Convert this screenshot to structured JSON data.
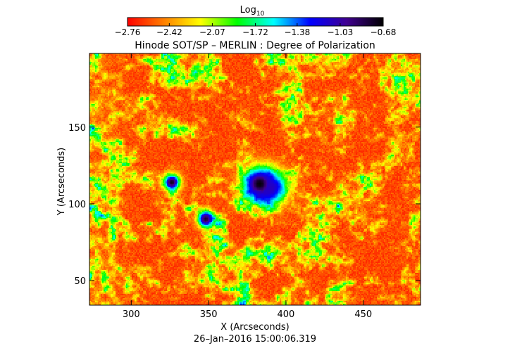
{
  "chart_data": {
    "type": "heatmap",
    "title": "Hinode SOT/SP – MERLIN : Degree of Polarization",
    "colorbar": {
      "label_base": "Log",
      "label_sub": "10",
      "tick_labels": [
        "−2.76",
        "−2.42",
        "−2.07",
        "−1.72",
        "−1.38",
        "−1.03",
        "−0.68"
      ],
      "tick_values": [
        -2.76,
        -2.42,
        -2.07,
        -1.72,
        -1.38,
        -1.03,
        -0.68
      ],
      "range": [
        -2.76,
        -0.68
      ],
      "colormap": [
        "#ff0000",
        "#ff8000",
        "#ffff00",
        "#00ff00",
        "#00ffff",
        "#0000ff",
        "#400090",
        "#000000"
      ]
    },
    "xlabel": "X (Arcseconds)",
    "ylabel": "Y (Arcseconds)",
    "xlim": [
      273,
      487
    ],
    "ylim": [
      34,
      198
    ],
    "x_ticks": [
      300,
      350,
      400,
      450
    ],
    "y_ticks": [
      50,
      100,
      150
    ],
    "grid": false,
    "features": [
      {
        "name": "sunspot umbra",
        "x": 383,
        "y": 113,
        "value": -0.7
      },
      {
        "name": "sunspot penumbra",
        "x": 390,
        "y": 110,
        "value": -1.1
      },
      {
        "name": "pore",
        "x": 326,
        "y": 114,
        "value": -0.75
      },
      {
        "name": "pore",
        "x": 348,
        "y": 90,
        "value": -0.8
      }
    ]
  },
  "footer": {
    "timestamp": "26–Jan–2016 15:00:06.319"
  }
}
